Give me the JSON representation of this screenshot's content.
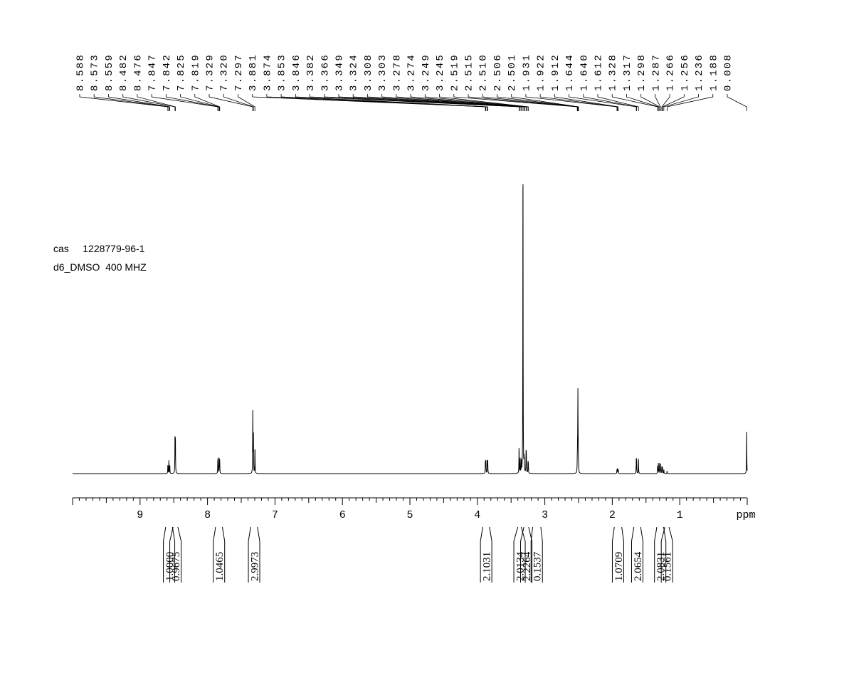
{
  "sample": {
    "cas_label": "cas",
    "cas_number": "1228779-96-1",
    "solvent": "d6_DMSO",
    "frequency": "400 MHZ"
  },
  "chart_data": {
    "type": "line",
    "x_unit_label": "ppm",
    "x_range": [
      10.0,
      0.0
    ],
    "x_reversed": true,
    "x_ticks": [
      {
        "value": 9,
        "label": "9"
      },
      {
        "value": 8,
        "label": "8"
      },
      {
        "value": 7,
        "label": "7"
      },
      {
        "value": 6,
        "label": "6"
      },
      {
        "value": 5,
        "label": "5"
      },
      {
        "value": 4,
        "label": "4"
      },
      {
        "value": 3,
        "label": "3"
      },
      {
        "value": 2,
        "label": "2"
      },
      {
        "value": 1,
        "label": "1"
      }
    ],
    "peak_labels": [
      "8.588",
      "8.573",
      "8.559",
      "8.482",
      "8.476",
      "7.847",
      "7.842",
      "7.825",
      "7.819",
      "7.329",
      "7.320",
      "7.297",
      "3.881",
      "3.874",
      "3.853",
      "3.846",
      "3.382",
      "3.366",
      "3.349",
      "3.324",
      "3.308",
      "3.303",
      "3.278",
      "3.274",
      "3.249",
      "3.245",
      "2.519",
      "2.515",
      "2.510",
      "2.506",
      "2.501",
      "1.931",
      "1.922",
      "1.912",
      "1.644",
      "1.640",
      "1.612",
      "1.328",
      "1.317",
      "1.298",
      "1.287",
      "1.266",
      "1.256",
      "1.236",
      "1.188",
      "0.008"
    ],
    "peaks": [
      {
        "ppm": 8.588,
        "h": 0.025
      },
      {
        "ppm": 8.573,
        "h": 0.038
      },
      {
        "ppm": 8.559,
        "h": 0.025
      },
      {
        "ppm": 8.482,
        "h": 0.11
      },
      {
        "ppm": 8.476,
        "h": 0.105
      },
      {
        "ppm": 7.847,
        "h": 0.038
      },
      {
        "ppm": 7.842,
        "h": 0.04
      },
      {
        "ppm": 7.825,
        "h": 0.04
      },
      {
        "ppm": 7.819,
        "h": 0.036
      },
      {
        "ppm": 7.329,
        "h": 0.18
      },
      {
        "ppm": 7.32,
        "h": 0.125
      },
      {
        "ppm": 7.297,
        "h": 0.08
      },
      {
        "ppm": 3.881,
        "h": 0.035
      },
      {
        "ppm": 3.874,
        "h": 0.04
      },
      {
        "ppm": 3.853,
        "h": 0.042
      },
      {
        "ppm": 3.846,
        "h": 0.036
      },
      {
        "ppm": 3.382,
        "h": 0.08
      },
      {
        "ppm": 3.366,
        "h": 0.045
      },
      {
        "ppm": 3.349,
        "h": 0.04
      },
      {
        "ppm": 3.324,
        "h": 1.0
      },
      {
        "ppm": 3.308,
        "h": 0.035
      },
      {
        "ppm": 3.303,
        "h": 0.032
      },
      {
        "ppm": 3.278,
        "h": 0.06
      },
      {
        "ppm": 3.274,
        "h": 0.05
      },
      {
        "ppm": 3.249,
        "h": 0.03
      },
      {
        "ppm": 3.245,
        "h": 0.028
      },
      {
        "ppm": 2.519,
        "h": 0.03
      },
      {
        "ppm": 2.515,
        "h": 0.06
      },
      {
        "ppm": 2.51,
        "h": 0.23
      },
      {
        "ppm": 2.506,
        "h": 0.06
      },
      {
        "ppm": 2.501,
        "h": 0.03
      },
      {
        "ppm": 1.931,
        "h": 0.012
      },
      {
        "ppm": 1.922,
        "h": 0.016
      },
      {
        "ppm": 1.912,
        "h": 0.012
      },
      {
        "ppm": 1.644,
        "h": 0.038
      },
      {
        "ppm": 1.64,
        "h": 0.035
      },
      {
        "ppm": 1.612,
        "h": 0.045
      },
      {
        "ppm": 1.328,
        "h": 0.025
      },
      {
        "ppm": 1.317,
        "h": 0.03
      },
      {
        "ppm": 1.298,
        "h": 0.03
      },
      {
        "ppm": 1.287,
        "h": 0.028
      },
      {
        "ppm": 1.266,
        "h": 0.022
      },
      {
        "ppm": 1.256,
        "h": 0.018
      },
      {
        "ppm": 1.236,
        "h": 0.012
      },
      {
        "ppm": 1.188,
        "h": 0.008
      },
      {
        "ppm": 0.008,
        "h": 0.125
      }
    ],
    "integrals": [
      {
        "from": 8.62,
        "to": 8.52,
        "label": "1.0000"
      },
      {
        "from": 8.51,
        "to": 8.44,
        "label": "0.9675"
      },
      {
        "from": 7.88,
        "to": 7.78,
        "label": "1.0465"
      },
      {
        "from": 7.36,
        "to": 7.26,
        "label": "2.9973"
      },
      {
        "from": 3.92,
        "to": 3.82,
        "label": "2.1031"
      },
      {
        "from": 3.4,
        "to": 3.35,
        "label": "2.0134"
      },
      {
        "from": 3.31,
        "to": 3.24,
        "label": "2.2264"
      },
      {
        "from": 3.18,
        "to": 3.06,
        "label": "0.1537"
      },
      {
        "from": 1.97,
        "to": 1.86,
        "label": "1.0709"
      },
      {
        "from": 1.68,
        "to": 1.58,
        "label": "2.0654"
      },
      {
        "from": 1.34,
        "to": 1.24,
        "label": "2.0831"
      },
      {
        "from": 1.22,
        "to": 1.16,
        "label": "0.1561"
      }
    ]
  }
}
